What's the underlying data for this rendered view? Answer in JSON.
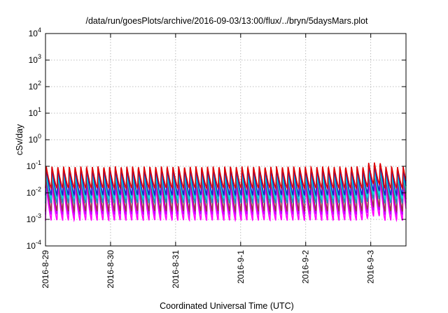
{
  "chart_data": {
    "type": "line",
    "title": "/data/run/goesPlots/archive/2016-09-03/13:00/flux/../bryn/5daysMars.plot",
    "xlabel": "Coordinated Universal Time (UTC)",
    "ylabel": "cSv/day",
    "yscale": "log",
    "ylim_exponents": [
      -4,
      4
    ],
    "ytick_labels": [
      {
        "base": "10",
        "exp": "-4"
      },
      {
        "base": "10",
        "exp": "-3"
      },
      {
        "base": "10",
        "exp": "-2"
      },
      {
        "base": "10",
        "exp": "-1"
      },
      {
        "base": "10",
        "exp": "0"
      },
      {
        "base": "10",
        "exp": "1"
      },
      {
        "base": "10",
        "exp": "2"
      },
      {
        "base": "10",
        "exp": "3"
      },
      {
        "base": "10",
        "exp": "4"
      }
    ],
    "xtick_labels": [
      "2016-8-29",
      "2016-8-30",
      "2016-8-31",
      "2016-9-1",
      "2016-9-2",
      "2016-9-3"
    ],
    "xlim": [
      "2016-08-29T00:00",
      "2016-09-03T13:00"
    ],
    "grid": true,
    "cycles_per_day": 11.3,
    "series": [
      {
        "color": "#ff00ff",
        "peak": 0.02,
        "trough": 0.0009
      },
      {
        "color": "#c000ff",
        "peak": 0.035,
        "trough": 0.0015
      },
      {
        "color": "#a0304a",
        "peak": 0.05,
        "trough": 0.002
      },
      {
        "color": "#1e90c0",
        "peak": 0.065,
        "trough": 0.004
      },
      {
        "color": "#00e0e0",
        "peak": 0.045,
        "trough": 0.006
      },
      {
        "color": "#2020c8",
        "peak": 0.095,
        "trough": 0.008
      },
      {
        "color": "#e00000",
        "peak": 0.1,
        "trough": 0.015
      }
    ]
  }
}
